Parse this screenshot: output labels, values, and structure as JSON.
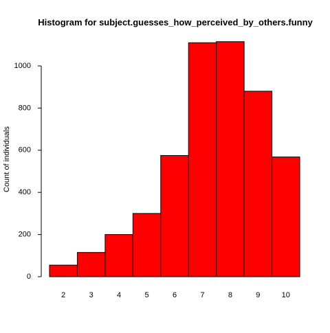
{
  "chart_data": {
    "type": "bar",
    "title": "Histogram for subject.guesses_how_perceived_by_others.funny",
    "xlabel": "",
    "ylabel": "Count of individuals",
    "categories": [
      "2",
      "3",
      "4",
      "5",
      "6",
      "7",
      "8",
      "9",
      "10"
    ],
    "values": [
      55,
      115,
      200,
      300,
      575,
      1110,
      1115,
      880,
      568
    ],
    "yticks": [
      "0",
      "200",
      "400",
      "600",
      "800",
      "1000"
    ],
    "ylim": [
      0,
      1150
    ],
    "grid": false,
    "legend": "none",
    "bar_color": "#ff0000",
    "bar_edge_color": "#000000"
  }
}
